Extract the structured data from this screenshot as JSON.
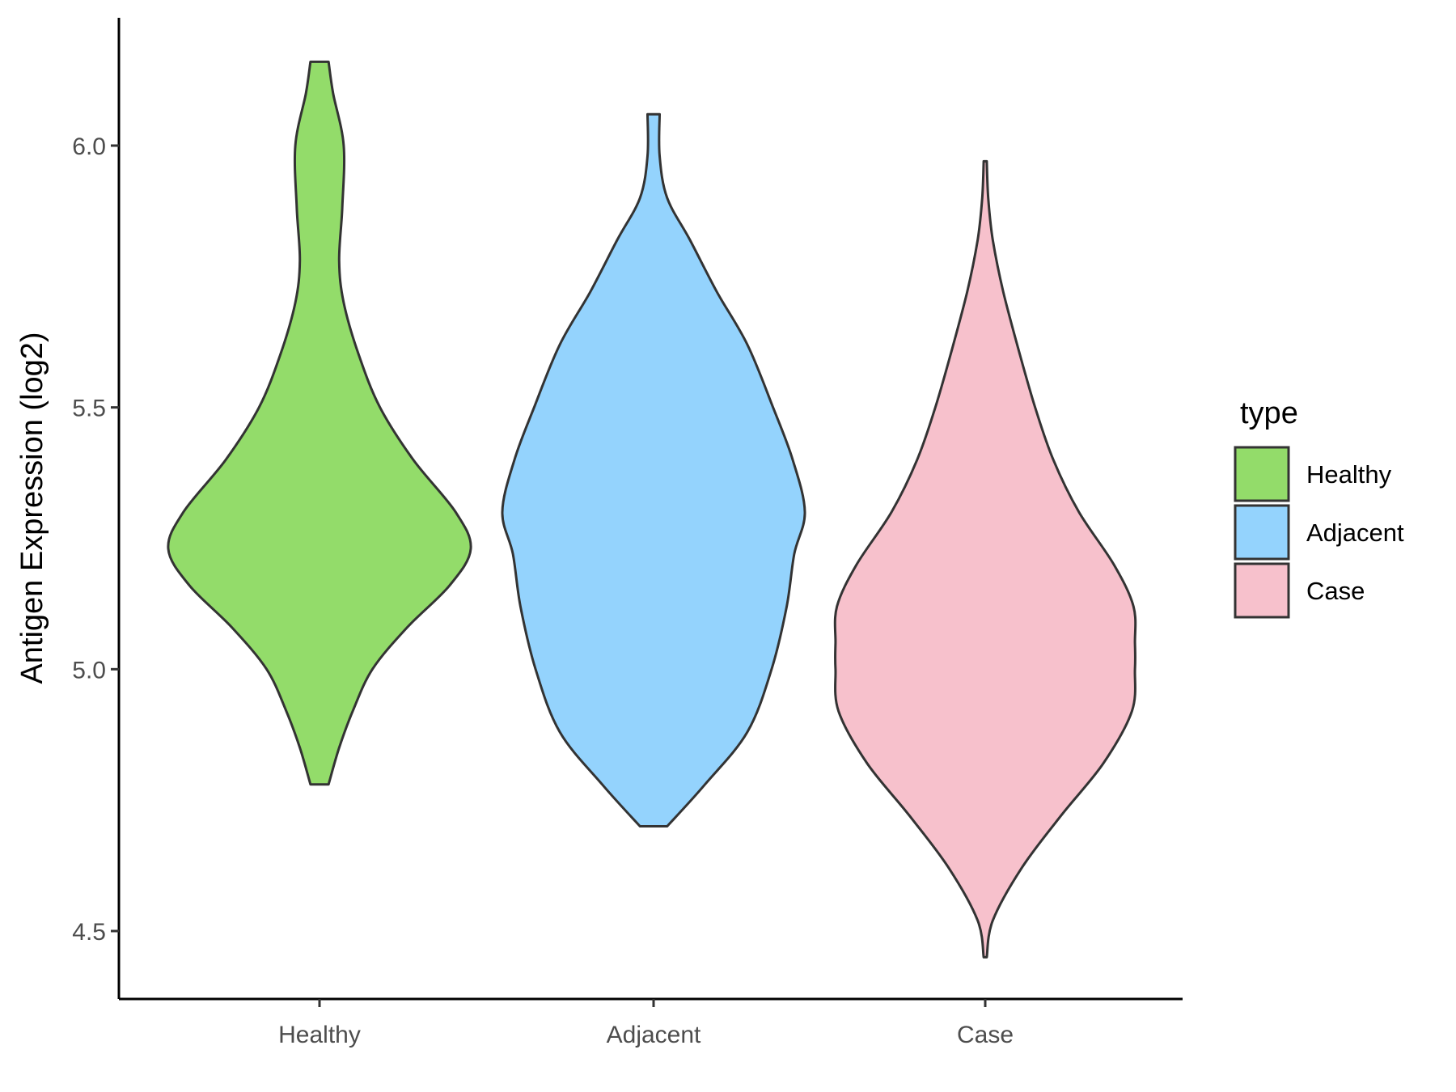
{
  "chart_data": {
    "type": "violin",
    "title": "",
    "xlabel": "",
    "ylabel": "Antigen Expression (log2)",
    "ylim": [
      4.38,
      6.25
    ],
    "yticks": [
      4.5,
      5.0,
      5.5,
      6.0
    ],
    "ytick_labels": [
      "4.5",
      "5.0",
      "5.5",
      "6.0"
    ],
    "categories": [
      "Healthy",
      "Adjacent",
      "Case"
    ],
    "legend": {
      "title": "type",
      "position": "right",
      "entries": [
        "Healthy",
        "Adjacent",
        "Case"
      ]
    },
    "colors": {
      "Healthy": "#93dc6a",
      "Adjacent": "#94d3fd",
      "Case": "#f7c1cc",
      "outline": "#333333"
    },
    "series": [
      {
        "category": "Healthy",
        "min": 4.78,
        "max": 6.16,
        "density_profile": [
          [
            4.78,
            0.06
          ],
          [
            4.85,
            0.13
          ],
          [
            4.92,
            0.22
          ],
          [
            5.0,
            0.35
          ],
          [
            5.08,
            0.58
          ],
          [
            5.16,
            0.86
          ],
          [
            5.23,
            1.0
          ],
          [
            5.3,
            0.9
          ],
          [
            5.4,
            0.62
          ],
          [
            5.5,
            0.4
          ],
          [
            5.6,
            0.26
          ],
          [
            5.7,
            0.16
          ],
          [
            5.78,
            0.13
          ],
          [
            5.88,
            0.15
          ],
          [
            6.0,
            0.16
          ],
          [
            6.1,
            0.09
          ],
          [
            6.16,
            0.06
          ]
        ]
      },
      {
        "category": "Adjacent",
        "min": 4.7,
        "max": 6.06,
        "density_profile": [
          [
            4.7,
            0.09
          ],
          [
            4.78,
            0.34
          ],
          [
            4.88,
            0.62
          ],
          [
            5.0,
            0.78
          ],
          [
            5.12,
            0.88
          ],
          [
            5.22,
            0.93
          ],
          [
            5.3,
            1.0
          ],
          [
            5.4,
            0.92
          ],
          [
            5.5,
            0.79
          ],
          [
            5.62,
            0.62
          ],
          [
            5.72,
            0.42
          ],
          [
            5.82,
            0.24
          ],
          [
            5.9,
            0.09
          ],
          [
            5.98,
            0.04
          ],
          [
            6.06,
            0.04
          ]
        ]
      },
      {
        "category": "Case",
        "min": 4.45,
        "max": 5.97,
        "density_profile": [
          [
            4.45,
            0.01
          ],
          [
            4.52,
            0.05
          ],
          [
            4.62,
            0.24
          ],
          [
            4.72,
            0.5
          ],
          [
            4.82,
            0.78
          ],
          [
            4.92,
            0.97
          ],
          [
            5.0,
            0.99
          ],
          [
            5.05,
            0.99
          ],
          [
            5.12,
            0.98
          ],
          [
            5.2,
            0.85
          ],
          [
            5.3,
            0.62
          ],
          [
            5.4,
            0.45
          ],
          [
            5.5,
            0.33
          ],
          [
            5.6,
            0.23
          ],
          [
            5.72,
            0.12
          ],
          [
            5.82,
            0.05
          ],
          [
            5.9,
            0.02
          ],
          [
            5.97,
            0.01
          ]
        ]
      }
    ]
  }
}
